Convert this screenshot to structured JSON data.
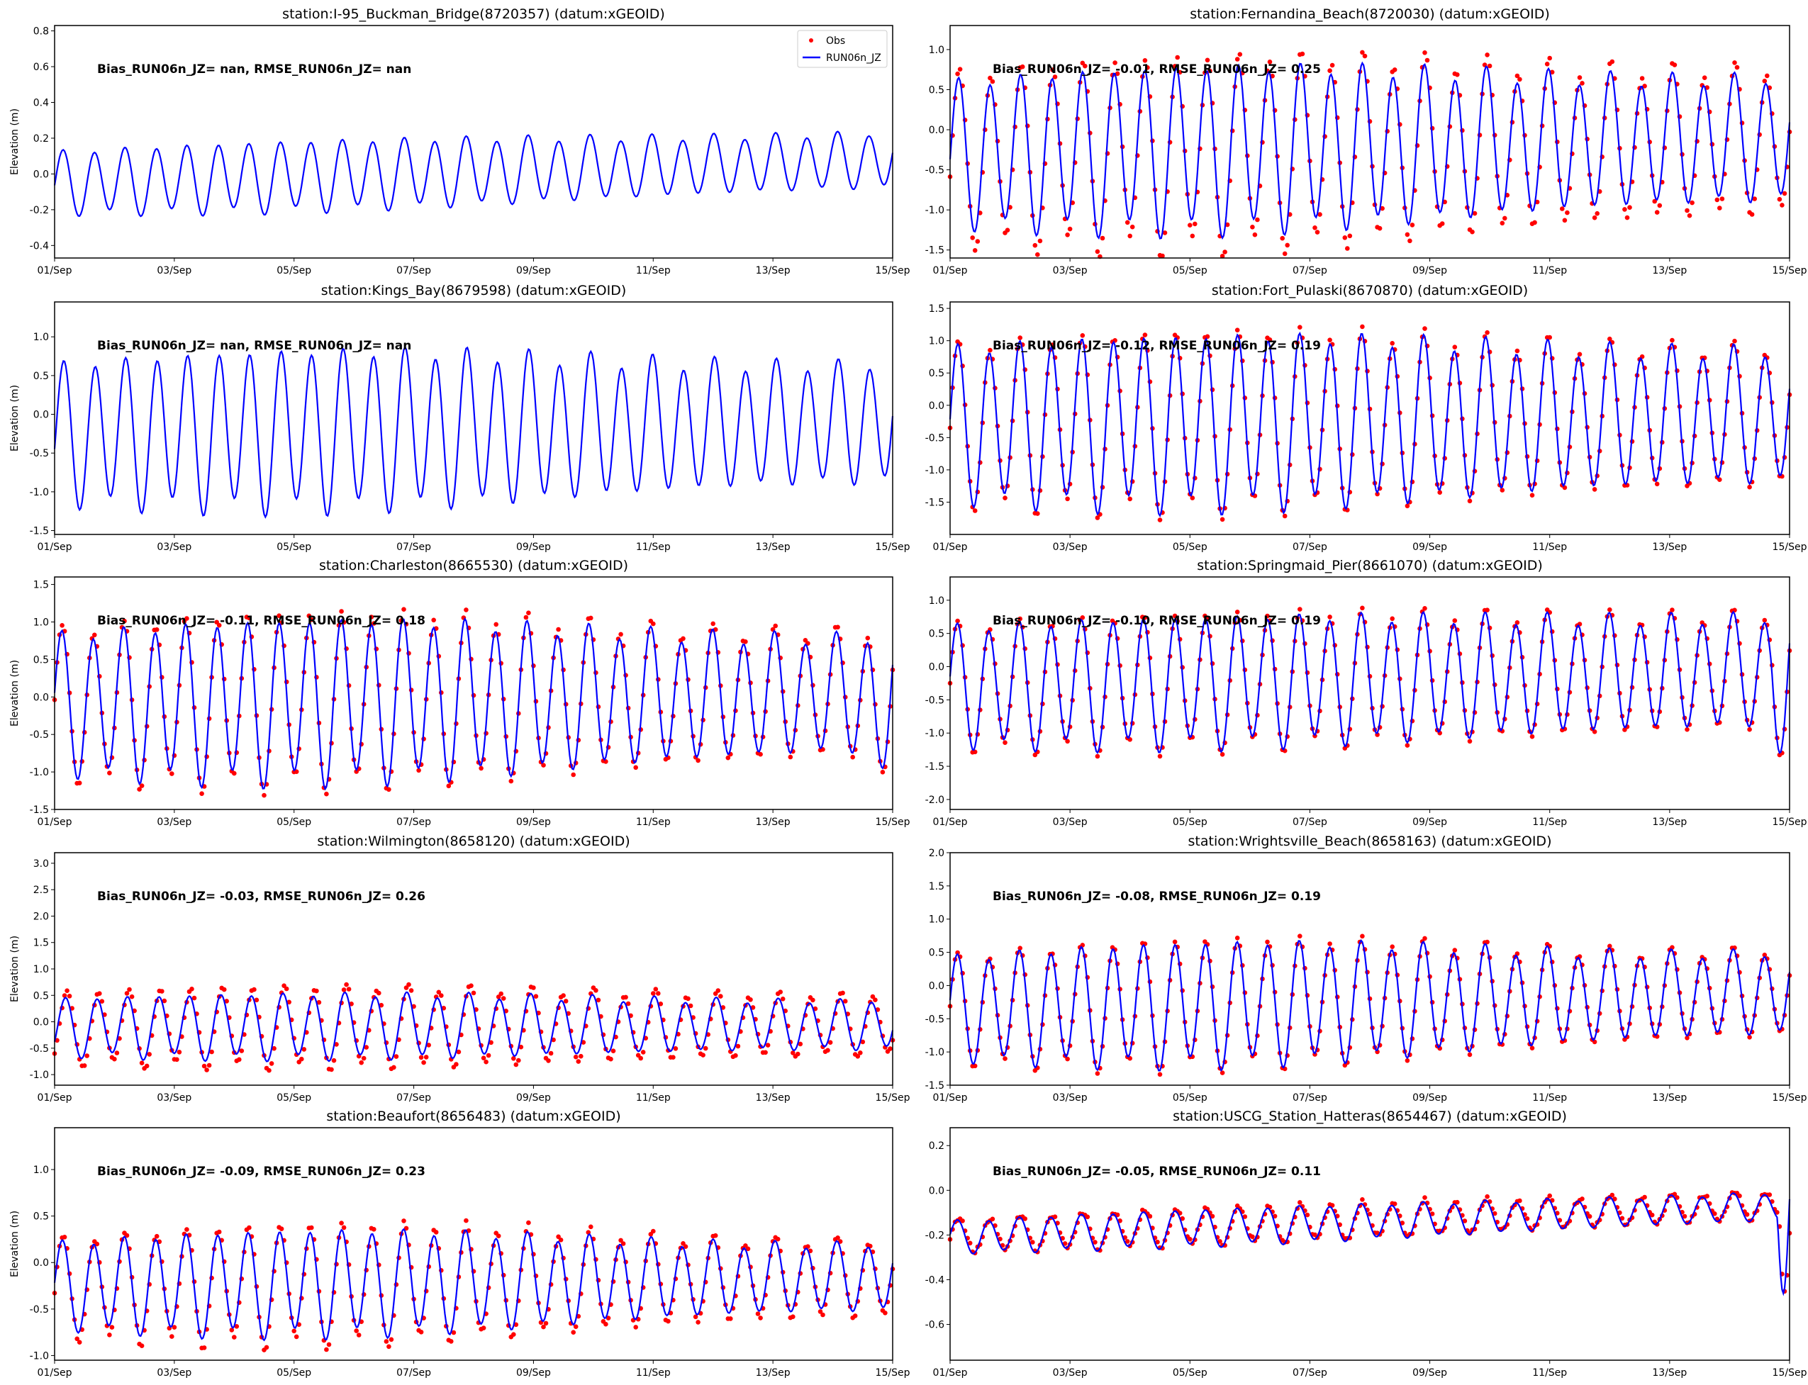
{
  "chart_data": [
    {
      "type": "line",
      "title": "station:I-95_Buckman_Bridge(8720357) (datum:xGEOID)",
      "stats": "Bias_RUN06n_JZ=   nan, RMSE_RUN06n_JZ=   nan",
      "ylabel": "Elevation (m)",
      "ylim": [
        -0.47,
        0.83
      ],
      "yticks": [
        "-0.4",
        "-0.2",
        "0.0",
        "0.2",
        "0.4",
        "0.6",
        "0.8"
      ],
      "has_obs": false,
      "model": {
        "mean": [
          -0.05,
          0.08
        ],
        "amp": [
          0.15,
          0.19
        ],
        "phase": 3.5
      },
      "legend": {
        "placement": "top-right",
        "entries": [
          "Obs",
          "RUN06n_JZ"
        ]
      }
    },
    {
      "type": "line",
      "title": "station:Fernandina_Beach(8720030) (datum:xGEOID)",
      "stats": "Bias_RUN06n_JZ= -0.01, RMSE_RUN06n_JZ=  0.25",
      "ylabel": "",
      "ylim": [
        -1.6,
        1.3
      ],
      "yticks": [
        "-1.5",
        "-1.0",
        "-0.5",
        "0.0",
        "0.5",
        "1.0"
      ],
      "has_obs": true,
      "model": {
        "mean": [
          -0.3,
          -0.1
        ],
        "amp": [
          0.75,
          1.0
        ],
        "phase": 3.5
      },
      "obs": {
        "amp_factor": 1.18,
        "offset": 0.0,
        "lag": 0.3
      }
    },
    {
      "type": "line",
      "title": "station:Kings_Bay(8679598) (datum:xGEOID)",
      "stats": "Bias_RUN06n_JZ=   nan, RMSE_RUN06n_JZ=   nan",
      "ylabel": "Elevation (m)",
      "ylim": [
        -1.55,
        1.45
      ],
      "yticks": [
        "-1.5",
        "-1.0",
        "-0.5",
        "0.0",
        "0.5",
        "1.0"
      ],
      "has_obs": false,
      "model": {
        "mean": [
          -0.25,
          -0.1
        ],
        "amp": [
          0.75,
          1.0
        ],
        "phase": 3.8
      }
    },
    {
      "type": "line",
      "title": "station:Fort_Pulaski(8670870) (datum:xGEOID)",
      "stats": "Bias_RUN06n_JZ= -0.12, RMSE_RUN06n_JZ=  0.19",
      "ylabel": "",
      "ylim": [
        -2.0,
        1.6
      ],
      "yticks": [
        "-1.5",
        "-1.0",
        "-0.5",
        "0.0",
        "0.5",
        "1.0",
        "1.5"
      ],
      "has_obs": true,
      "model": {
        "mean": [
          -0.3,
          -0.15
        ],
        "amp": [
          1.0,
          1.3
        ],
        "phase": 3.2
      },
      "obs": {
        "amp_factor": 1.05,
        "offset": 0.1,
        "lag": 0.2
      }
    },
    {
      "type": "line",
      "title": "station:Charleston(8665530) (datum:xGEOID)",
      "stats": "Bias_RUN06n_JZ= -0.11, RMSE_RUN06n_JZ=  0.18",
      "ylabel": "Elevation (m)",
      "ylim": [
        -1.5,
        1.6
      ],
      "yticks": [
        "-1.5",
        "-1.0",
        "-0.5",
        "0.0",
        "0.5",
        "1.0",
        "1.5"
      ],
      "has_obs": true,
      "model": {
        "mean": [
          -0.1,
          0.05
        ],
        "amp": [
          0.75,
          1.05
        ],
        "phase": 3.0
      },
      "obs": {
        "amp_factor": 1.08,
        "offset": 0.1,
        "lag": 0.2
      },
      "event": {
        "start": 13.6,
        "shift": -0.3
      }
    },
    {
      "type": "line",
      "title": "station:Springmaid_Pier(8661070) (datum:xGEOID)",
      "stats": "Bias_RUN06n_JZ= -0.10, RMSE_RUN06n_JZ=  0.19",
      "ylabel": "",
      "ylim": [
        -2.15,
        1.35
      ],
      "yticks": [
        "-2.0",
        "-1.5",
        "-1.0",
        "-0.5",
        "0.0",
        "0.5",
        "1.0"
      ],
      "has_obs": true,
      "model": {
        "mean": [
          -0.3,
          -0.05
        ],
        "amp": [
          0.8,
          0.95
        ],
        "phase": 3.0
      },
      "obs": {
        "amp_factor": 1.05,
        "offset": 0.08,
        "lag": 0.2
      },
      "event": {
        "start": 13.7,
        "shift": -0.5
      }
    },
    {
      "type": "line",
      "title": "station:Wilmington(8658120) (datum:xGEOID)",
      "stats": "Bias_RUN06n_JZ= -0.03, RMSE_RUN06n_JZ=  0.26",
      "ylabel": "Elevation (m)",
      "ylim": [
        -1.2,
        3.2
      ],
      "yticks": [
        "-1.0",
        "-0.5",
        "0.0",
        "0.5",
        "1.0",
        "1.5",
        "2.0",
        "2.5",
        "3.0"
      ],
      "has_obs": true,
      "model": {
        "mean": [
          -0.1,
          -0.05
        ],
        "amp": [
          0.45,
          0.6
        ],
        "phase": 4.5
      },
      "obs": {
        "amp_factor": 1.25,
        "offset": 0.05,
        "lag": 0.6
      },
      "event": {
        "start": 14.3,
        "shift": 1.0
      }
    },
    {
      "type": "line",
      "title": "station:Wrightsville_Beach(8658163) (datum:xGEOID)",
      "stats": "Bias_RUN06n_JZ= -0.08, RMSE_RUN06n_JZ=  0.19",
      "ylabel": "",
      "ylim": [
        -1.5,
        2.0
      ],
      "yticks": [
        "-1.5",
        "-1.0",
        "-0.5",
        "0.0",
        "0.5",
        "1.0",
        "1.5",
        "2.0"
      ],
      "has_obs": true,
      "model": {
        "mean": [
          -0.35,
          -0.1
        ],
        "amp": [
          0.6,
          0.9
        ],
        "phase": 3.0
      },
      "obs": {
        "amp_factor": 1.05,
        "offset": 0.08,
        "lag": 0.2
      },
      "event": {
        "start": 14.2,
        "shift": 1.3
      }
    },
    {
      "type": "line",
      "title": "station:Beaufort(8656483) (datum:xGEOID)",
      "stats": "Bias_RUN06n_JZ= -0.09, RMSE_RUN06n_JZ=  0.23",
      "ylabel": "Elevation (m)",
      "ylim": [
        -1.05,
        1.45
      ],
      "yticks": [
        "-1.0",
        "-0.5",
        "0.0",
        "0.5",
        "1.0"
      ],
      "has_obs": true,
      "model": {
        "mean": [
          -0.25,
          -0.15
        ],
        "amp": [
          0.35,
          0.55
        ],
        "phase": 3.2
      },
      "obs": {
        "amp_factor": 1.15,
        "offset": 0.1,
        "lag": 0.3
      },
      "event": {
        "start": 14.0,
        "shift": 0.9
      }
    },
    {
      "type": "line",
      "title": "station:USCG_Station_Hatteras(8654467) (datum:xGEOID)",
      "stats": "Bias_RUN06n_JZ= -0.05, RMSE_RUN06n_JZ=  0.11",
      "ylabel": "",
      "ylim": [
        -0.76,
        0.28
      ],
      "yticks": [
        "-0.6",
        "-0.4",
        "-0.2",
        "0.0",
        "0.2"
      ],
      "has_obs": true,
      "model": {
        "mean": [
          -0.21,
          -0.07
        ],
        "amp": [
          0.06,
          0.08
        ],
        "phase": 3.0
      },
      "obs": {
        "amp_factor": 1.0,
        "offset": 0.04,
        "lag": 0.6
      },
      "event": {
        "start": 13.8,
        "shift": -0.35
      }
    }
  ],
  "xticks": [
    "01/Sep",
    "03/Sep",
    "05/Sep",
    "07/Sep",
    "09/Sep",
    "11/Sep",
    "13/Sep",
    "15/Sep"
  ],
  "xrange_days": [
    0,
    14
  ],
  "colors": {
    "obs": "#ff0000",
    "model": "#0000ff"
  }
}
